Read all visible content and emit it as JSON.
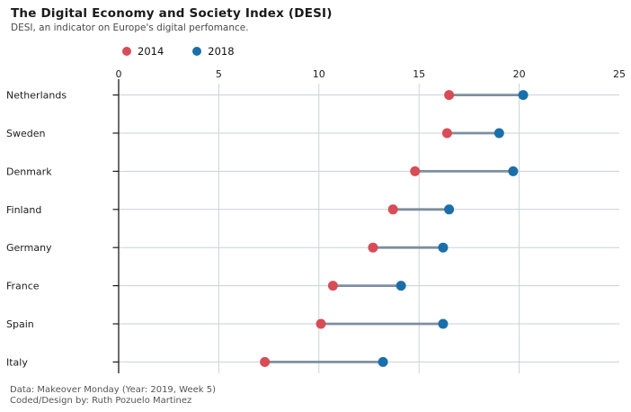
{
  "header": {
    "title": "The Digital Economy and Society Index (DESI)",
    "subtitle": "DESI, an indicator on Europe's digital perfomance."
  },
  "legend": [
    {
      "label": "2014",
      "color": "#d84c56"
    },
    {
      "label": "2018",
      "color": "#1b6fa9"
    }
  ],
  "footer": {
    "line1": "Data: Makeover Monday (Year: 2019, Week 5)",
    "line2": "Coded/Design by: Ruth Pozuelo Martinez"
  },
  "chart_data": {
    "type": "scatter",
    "subtype": "dumbbell",
    "title": "The Digital Economy and Society Index (DESI)",
    "categories": [
      "Netherlands",
      "Sweden",
      "Denmark",
      "Finland",
      "Germany",
      "France",
      "Spain",
      "Italy"
    ],
    "series": [
      {
        "name": "2014",
        "color": "#d84c56",
        "values": [
          16.5,
          16.4,
          14.8,
          13.7,
          12.7,
          10.7,
          10.1,
          7.3
        ]
      },
      {
        "name": "2018",
        "color": "#1b6fa9",
        "values": [
          20.2,
          19.0,
          19.7,
          16.5,
          16.2,
          14.1,
          16.2,
          13.2
        ]
      }
    ],
    "xlim": [
      0,
      25
    ],
    "xticks": [
      0,
      5,
      10,
      15,
      20,
      25
    ],
    "xlabel": "",
    "ylabel": "",
    "legend_position": "top",
    "grid": "on",
    "connector_color": "#7d8fa0",
    "gridline_color": "#ccd3d9",
    "axis_color": "#1c1c1c",
    "tick_label_color": "#1c1c1c",
    "category_label_color": "#1c1c1c"
  }
}
